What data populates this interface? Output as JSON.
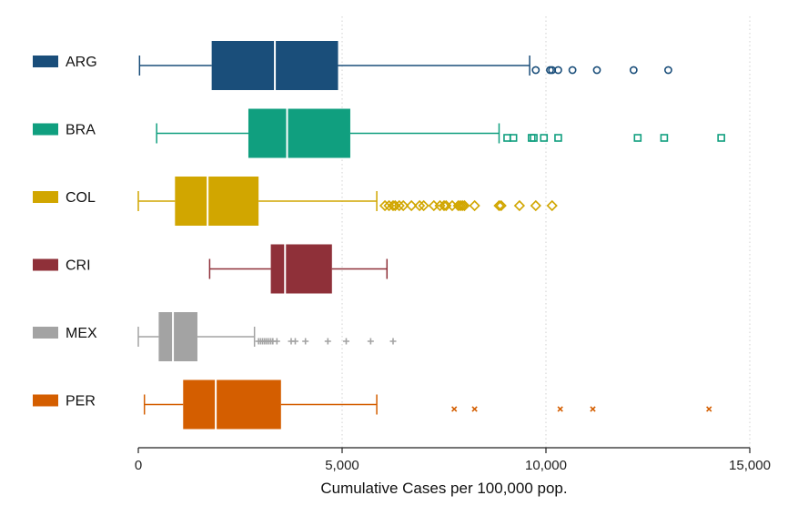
{
  "chart_data": {
    "type": "boxplot",
    "orientation": "horizontal",
    "title": "",
    "xlabel": "Cumulative Cases per 100,000 pop.",
    "ylabel": "",
    "xlim": [
      0,
      15000
    ],
    "xticks": [
      0,
      5000,
      10000,
      15000
    ],
    "xtick_labels": [
      "0",
      "5,000",
      "10,000",
      "15,000"
    ],
    "grid": "vertical dotted",
    "legend_position": "left",
    "series": [
      {
        "name": "ARG",
        "color": "#1a4e7a",
        "marker": "circle",
        "whisker_low": 30,
        "q1": 1800,
        "median": 3350,
        "q3": 4900,
        "whisker_high": 9600,
        "outliers": [
          9750,
          10100,
          10150,
          10300,
          10650,
          11250,
          12150,
          13000
        ]
      },
      {
        "name": "BRA",
        "color": "#109f7f",
        "marker": "square",
        "whisker_low": 450,
        "q1": 2700,
        "median": 3650,
        "q3": 5200,
        "whisker_high": 8850,
        "outliers": [
          9050,
          9200,
          9650,
          9700,
          9950,
          10300,
          12250,
          12900,
          14300
        ]
      },
      {
        "name": "COL",
        "color": "#d1a600",
        "marker": "diamond",
        "whisker_low": 0,
        "q1": 900,
        "median": 1700,
        "q3": 2950,
        "whisker_high": 5850,
        "outliers": [
          6050,
          6150,
          6250,
          6300,
          6400,
          6500,
          6700,
          6900,
          7000,
          7250,
          7400,
          7500,
          7550,
          7700,
          7850,
          7900,
          7950,
          8000,
          8250,
          8850,
          8900,
          9350,
          9750,
          10150
        ]
      },
      {
        "name": "CRI",
        "color": "#8f3039",
        "marker": "none",
        "whisker_low": 1750,
        "q1": 3250,
        "median": 3600,
        "q3": 4750,
        "whisker_high": 6100,
        "outliers": []
      },
      {
        "name": "MEX",
        "color": "#a3a3a3",
        "marker": "plus",
        "whisker_low": 0,
        "q1": 500,
        "median": 850,
        "q3": 1450,
        "whisker_high": 2850,
        "outliers": [
          2950,
          3000,
          3050,
          3100,
          3150,
          3200,
          3250,
          3300,
          3400,
          3750,
          3850,
          4100,
          4650,
          5100,
          5700,
          6250
        ]
      },
      {
        "name": "PER",
        "color": "#d45e00",
        "marker": "x",
        "whisker_low": 150,
        "q1": 1100,
        "median": 1900,
        "q3": 3500,
        "whisker_high": 5850,
        "outliers": [
          7750,
          8250,
          10350,
          11150,
          14000
        ]
      }
    ]
  }
}
